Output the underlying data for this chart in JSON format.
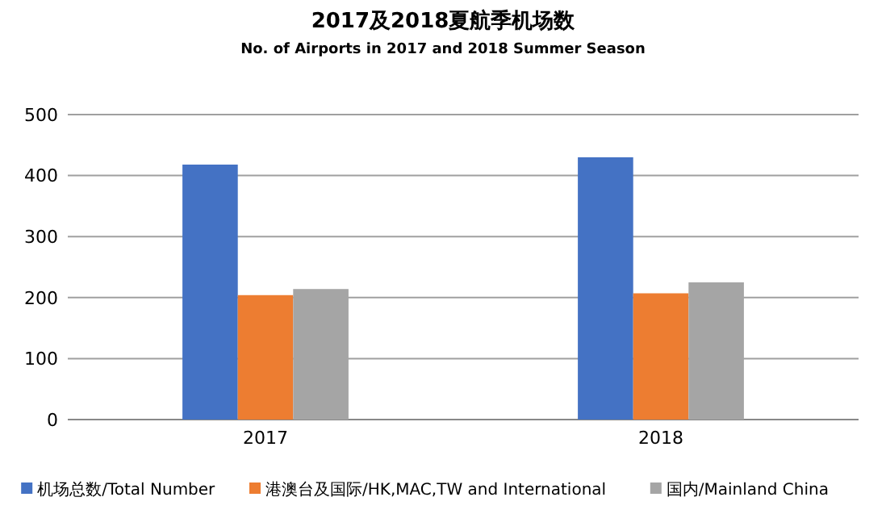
{
  "chart_data": {
    "type": "bar",
    "title": "2017及2018夏航季机场数",
    "subtitle": "No. of Airports in 2017 and 2018 Summer Season",
    "categories": [
      "2017",
      "2018"
    ],
    "series": [
      {
        "name": "机场总数/Total Number",
        "color": "#4472c4",
        "values": [
          418,
          430
        ]
      },
      {
        "name": "港澳台及国际/HK,MAC,TW and International",
        "color": "#ed7d31",
        "values": [
          204,
          207
        ]
      },
      {
        "name": "国内/Mainland China",
        "color": "#a5a5a5",
        "values": [
          214,
          225
        ]
      }
    ],
    "ylim": [
      0,
      500
    ],
    "yticks": [
      0,
      100,
      200,
      300,
      400,
      500
    ],
    "grid": "y",
    "legend": "bottom"
  }
}
